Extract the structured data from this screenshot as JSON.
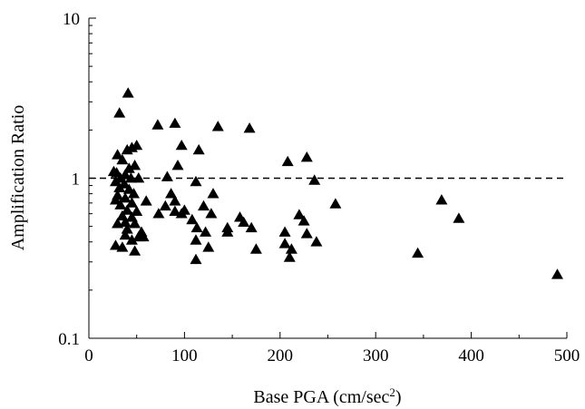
{
  "chart_data": {
    "type": "scatter",
    "title": "",
    "xlabel": "Base PGA (cm/sec",
    "xlabel_superscript": "2",
    "xlabel_suffix": ")",
    "ylabel": "Amplification Ratio",
    "xlim": [
      0,
      500
    ],
    "ylim": [
      0.1,
      10
    ],
    "yscale": "log",
    "xticks": [
      0,
      100,
      200,
      300,
      400,
      500
    ],
    "xtick_labels": [
      "0",
      "100",
      "200",
      "300",
      "400",
      "500"
    ],
    "yticks": [
      0.1,
      1,
      10
    ],
    "ytick_labels": [
      "0.1",
      "1",
      "10"
    ],
    "reference_line": {
      "y": 1,
      "style": "dashed"
    },
    "marker": "filled-triangle",
    "grid": false,
    "points": [
      {
        "x": 41,
        "y": 3.4
      },
      {
        "x": 32,
        "y": 2.55
      },
      {
        "x": 72,
        "y": 2.15
      },
      {
        "x": 90,
        "y": 2.2
      },
      {
        "x": 135,
        "y": 2.1
      },
      {
        "x": 168,
        "y": 2.05
      },
      {
        "x": 50,
        "y": 1.6
      },
      {
        "x": 45,
        "y": 1.55
      },
      {
        "x": 97,
        "y": 1.6
      },
      {
        "x": 115,
        "y": 1.5
      },
      {
        "x": 40,
        "y": 1.5
      },
      {
        "x": 228,
        "y": 1.35
      },
      {
        "x": 208,
        "y": 1.27
      },
      {
        "x": 93,
        "y": 1.2
      },
      {
        "x": 30,
        "y": 1.4
      },
      {
        "x": 35,
        "y": 1.3
      },
      {
        "x": 48,
        "y": 1.2
      },
      {
        "x": 26,
        "y": 1.1
      },
      {
        "x": 42,
        "y": 1.15
      },
      {
        "x": 29,
        "y": 1.08
      },
      {
        "x": 33,
        "y": 1.0
      },
      {
        "x": 38,
        "y": 1.05
      },
      {
        "x": 44,
        "y": 1.0
      },
      {
        "x": 28,
        "y": 0.95
      },
      {
        "x": 52,
        "y": 1.0
      },
      {
        "x": 82,
        "y": 1.02
      },
      {
        "x": 37,
        "y": 0.92
      },
      {
        "x": 112,
        "y": 0.95
      },
      {
        "x": 236,
        "y": 0.97
      },
      {
        "x": 32,
        "y": 0.87
      },
      {
        "x": 42,
        "y": 0.85
      },
      {
        "x": 86,
        "y": 0.8
      },
      {
        "x": 130,
        "y": 0.8
      },
      {
        "x": 47,
        "y": 0.8
      },
      {
        "x": 30,
        "y": 0.78
      },
      {
        "x": 38,
        "y": 0.75
      },
      {
        "x": 28,
        "y": 0.73
      },
      {
        "x": 60,
        "y": 0.72
      },
      {
        "x": 90,
        "y": 0.72
      },
      {
        "x": 45,
        "y": 0.7
      },
      {
        "x": 33,
        "y": 0.68
      },
      {
        "x": 80,
        "y": 0.67
      },
      {
        "x": 120,
        "y": 0.67
      },
      {
        "x": 258,
        "y": 0.69
      },
      {
        "x": 369,
        "y": 0.73
      },
      {
        "x": 40,
        "y": 0.63
      },
      {
        "x": 50,
        "y": 0.62
      },
      {
        "x": 73,
        "y": 0.6
      },
      {
        "x": 97,
        "y": 0.6
      },
      {
        "x": 128,
        "y": 0.6
      },
      {
        "x": 90,
        "y": 0.62
      },
      {
        "x": 100,
        "y": 0.63
      },
      {
        "x": 35,
        "y": 0.58
      },
      {
        "x": 45,
        "y": 0.57
      },
      {
        "x": 158,
        "y": 0.57
      },
      {
        "x": 220,
        "y": 0.59
      },
      {
        "x": 387,
        "y": 0.56
      },
      {
        "x": 108,
        "y": 0.55
      },
      {
        "x": 162,
        "y": 0.53
      },
      {
        "x": 225,
        "y": 0.54
      },
      {
        "x": 38,
        "y": 0.53
      },
      {
        "x": 30,
        "y": 0.52
      },
      {
        "x": 48,
        "y": 0.52
      },
      {
        "x": 170,
        "y": 0.49
      },
      {
        "x": 145,
        "y": 0.49
      },
      {
        "x": 113,
        "y": 0.49
      },
      {
        "x": 40,
        "y": 0.48
      },
      {
        "x": 55,
        "y": 0.46
      },
      {
        "x": 122,
        "y": 0.46
      },
      {
        "x": 205,
        "y": 0.46
      },
      {
        "x": 145,
        "y": 0.46
      },
      {
        "x": 228,
        "y": 0.45
      },
      {
        "x": 38,
        "y": 0.44
      },
      {
        "x": 52,
        "y": 0.43
      },
      {
        "x": 57,
        "y": 0.43
      },
      {
        "x": 45,
        "y": 0.41
      },
      {
        "x": 112,
        "y": 0.41
      },
      {
        "x": 205,
        "y": 0.39
      },
      {
        "x": 238,
        "y": 0.4
      },
      {
        "x": 28,
        "y": 0.38
      },
      {
        "x": 35,
        "y": 0.37
      },
      {
        "x": 125,
        "y": 0.37
      },
      {
        "x": 175,
        "y": 0.36
      },
      {
        "x": 212,
        "y": 0.36
      },
      {
        "x": 48,
        "y": 0.35
      },
      {
        "x": 210,
        "y": 0.32
      },
      {
        "x": 112,
        "y": 0.31
      },
      {
        "x": 344,
        "y": 0.34
      },
      {
        "x": 490,
        "y": 0.25
      }
    ]
  }
}
